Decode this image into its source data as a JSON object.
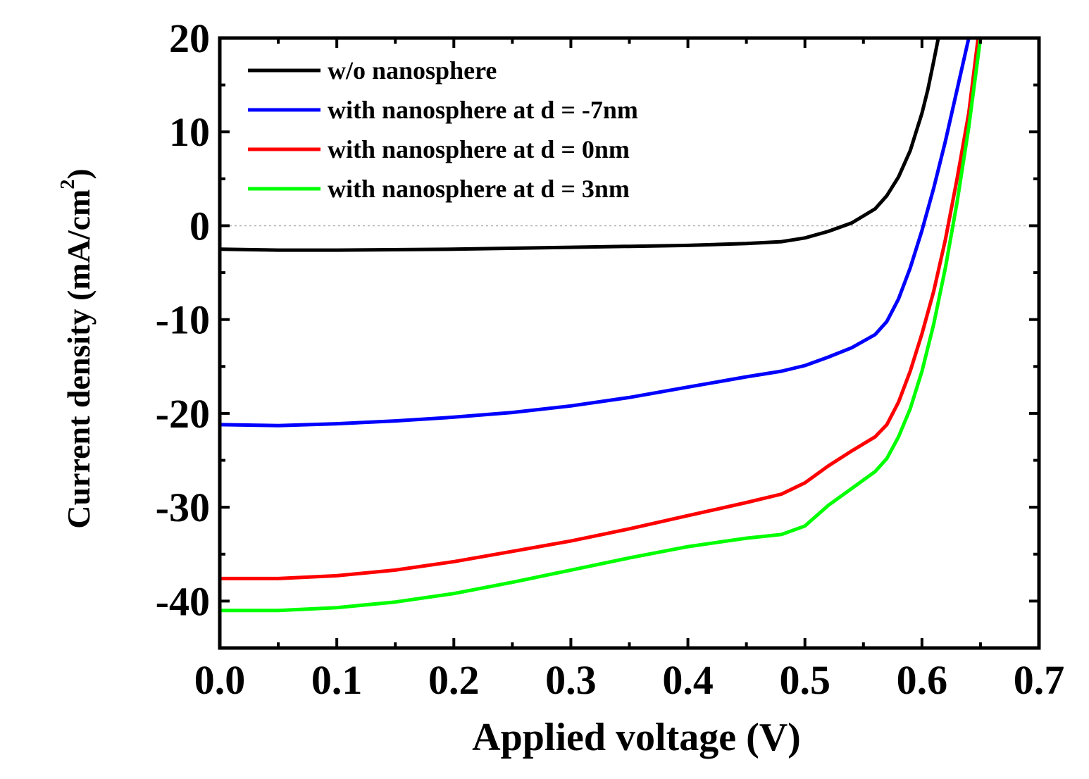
{
  "chart_data": {
    "type": "line",
    "title": "",
    "xlabel": "Applied voltage (V)",
    "ylabel": "Current density (mA/cm",
    "ylabel_sup": "2",
    "ylabel_close": ")",
    "xlim": [
      0.0,
      0.7
    ],
    "ylim": [
      -45,
      20
    ],
    "x_ticks": [
      0.0,
      0.1,
      0.2,
      0.3,
      0.4,
      0.5,
      0.6,
      0.7
    ],
    "x_tick_labels": [
      "0.0",
      "0.1",
      "0.2",
      "0.3",
      "0.4",
      "0.5",
      "0.6",
      "0.7"
    ],
    "y_ticks": [
      20,
      10,
      0,
      -10,
      -20,
      -30,
      -40
    ],
    "y_tick_labels": [
      "20",
      "10",
      "0",
      "-10",
      "-20",
      "-30",
      "-40"
    ],
    "zero_line": true,
    "grid": false,
    "legend_position": "top-left",
    "series": [
      {
        "name": "w/o nanosphere",
        "color": "#000000",
        "x": [
          0.0,
          0.05,
          0.1,
          0.2,
          0.3,
          0.4,
          0.45,
          0.48,
          0.5,
          0.52,
          0.54,
          0.56,
          0.57,
          0.58,
          0.59,
          0.6,
          0.605,
          0.61,
          0.614
        ],
        "y": [
          -2.5,
          -2.6,
          -2.6,
          -2.5,
          -2.3,
          -2.1,
          -1.9,
          -1.7,
          -1.3,
          -0.6,
          0.3,
          1.8,
          3.2,
          5.2,
          8.0,
          12.0,
          14.5,
          17.5,
          20.0
        ]
      },
      {
        "name": "with nanosphere at d = -7nm",
        "color": "#0000ff",
        "x": [
          0.0,
          0.05,
          0.1,
          0.15,
          0.2,
          0.25,
          0.3,
          0.35,
          0.4,
          0.45,
          0.48,
          0.5,
          0.52,
          0.54,
          0.56,
          0.57,
          0.58,
          0.59,
          0.6,
          0.61,
          0.62,
          0.63,
          0.64
        ],
        "y": [
          -21.2,
          -21.3,
          -21.1,
          -20.8,
          -20.4,
          -19.9,
          -19.2,
          -18.3,
          -17.2,
          -16.1,
          -15.5,
          -14.9,
          -14.0,
          -13.0,
          -11.6,
          -10.2,
          -7.8,
          -4.5,
          -0.5,
          4.0,
          9.0,
          14.5,
          20.0
        ]
      },
      {
        "name": "with nanosphere at d =  0nm",
        "color": "#ff0000",
        "x": [
          0.0,
          0.05,
          0.1,
          0.15,
          0.2,
          0.25,
          0.3,
          0.35,
          0.4,
          0.45,
          0.48,
          0.5,
          0.52,
          0.54,
          0.56,
          0.57,
          0.58,
          0.59,
          0.6,
          0.61,
          0.62,
          0.63,
          0.64,
          0.648
        ],
        "y": [
          -37.6,
          -37.6,
          -37.3,
          -36.7,
          -35.8,
          -34.7,
          -33.6,
          -32.3,
          -30.9,
          -29.5,
          -28.6,
          -27.4,
          -25.6,
          -24.0,
          -22.5,
          -21.2,
          -18.8,
          -15.5,
          -11.5,
          -7.0,
          -1.5,
          5.0,
          12.0,
          20.0
        ]
      },
      {
        "name": "with nanosphere at d =  3nm",
        "color": "#00ff00",
        "x": [
          0.0,
          0.05,
          0.1,
          0.15,
          0.2,
          0.25,
          0.3,
          0.35,
          0.4,
          0.45,
          0.48,
          0.5,
          0.52,
          0.54,
          0.56,
          0.57,
          0.58,
          0.59,
          0.6,
          0.61,
          0.62,
          0.63,
          0.64,
          0.65
        ],
        "y": [
          -41.0,
          -41.0,
          -40.7,
          -40.1,
          -39.2,
          -38.0,
          -36.7,
          -35.4,
          -34.2,
          -33.3,
          -32.9,
          -32.0,
          -29.8,
          -28.0,
          -26.2,
          -24.8,
          -22.5,
          -19.5,
          -15.5,
          -10.5,
          -4.5,
          2.5,
          10.5,
          20.0
        ]
      }
    ]
  }
}
